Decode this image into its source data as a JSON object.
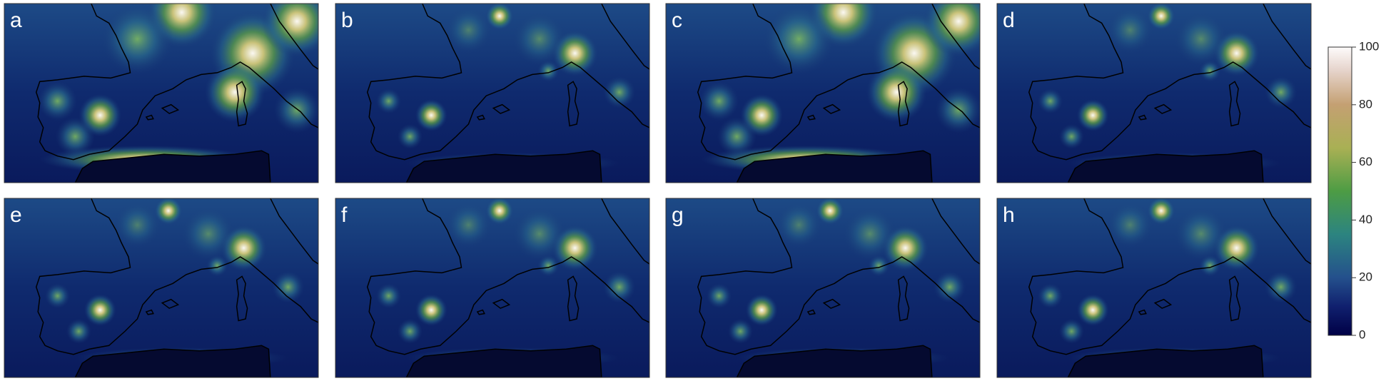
{
  "panels": [
    "a",
    "b",
    "c",
    "d",
    "e",
    "f",
    "g",
    "h"
  ],
  "colorbar": {
    "ylim": [
      0,
      100
    ],
    "yticks": [
      0,
      20,
      40,
      60,
      80,
      100
    ]
  }
}
